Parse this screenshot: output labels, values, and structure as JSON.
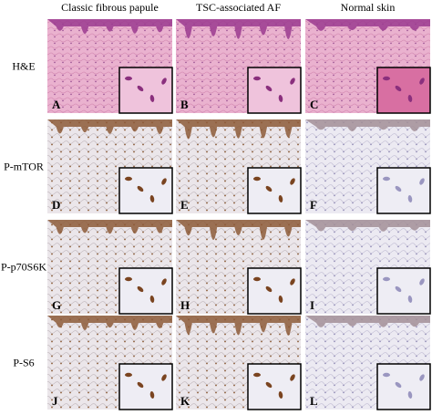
{
  "columns": [
    "Classic fibrous papule",
    "TSC-associated AF",
    "Normal skin"
  ],
  "rows": [
    {
      "label": "H&E",
      "panels": [
        "A",
        "B",
        "C"
      ]
    },
    {
      "label": "P-mTOR",
      "panels": [
        "D",
        "E",
        "F"
      ]
    },
    {
      "label": "P-p70S6K",
      "panels": [
        "G",
        "H",
        "I"
      ]
    },
    {
      "label": "P-S6",
      "panels": [
        "J",
        "K",
        "L"
      ]
    }
  ]
}
